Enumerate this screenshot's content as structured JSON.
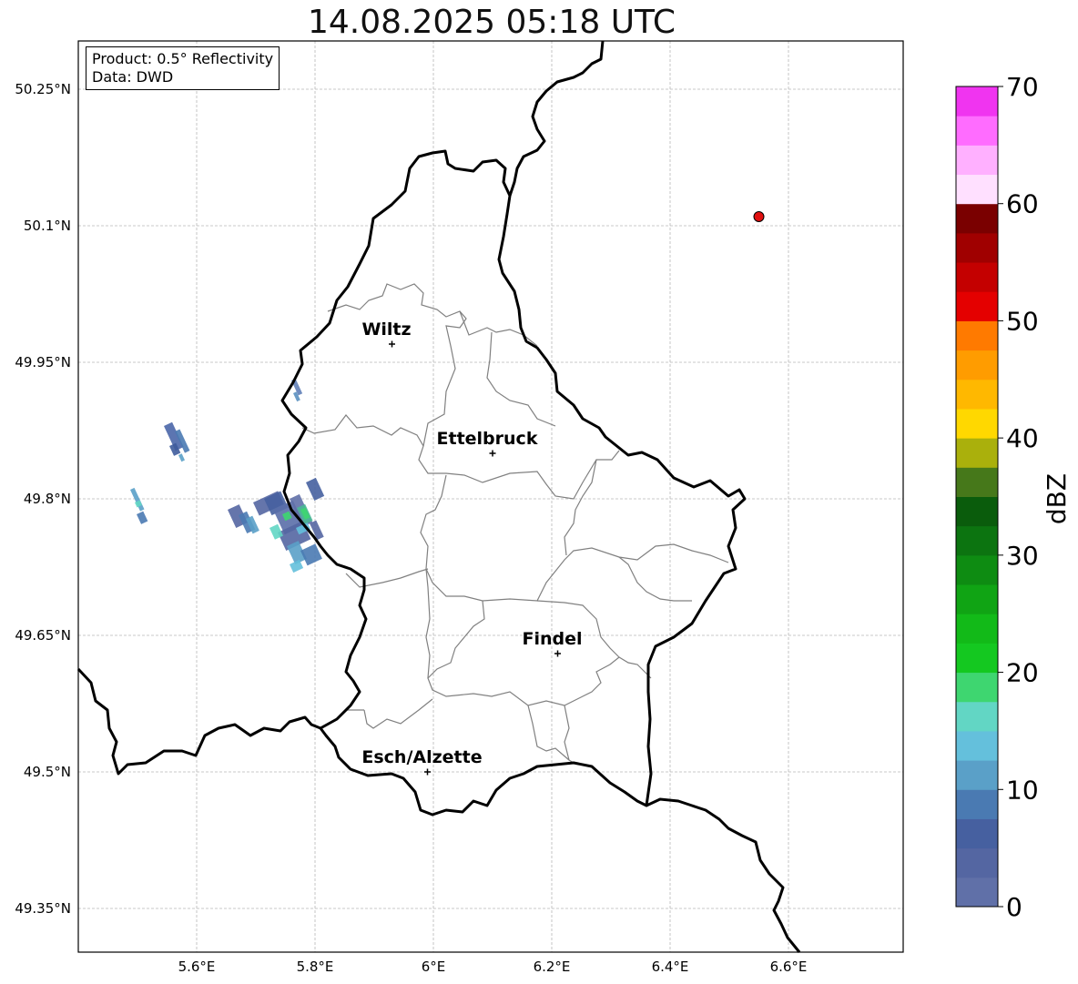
{
  "title": "14.08.2025 05:18 UTC",
  "info_box": {
    "product": "Product: 0.5° Reflectivity",
    "data": "Data: DWD"
  },
  "axes": {
    "lon_ticks": [
      "5.6°E",
      "5.8°E",
      "6°E",
      "6.2°E",
      "6.4°E",
      "6.6°E"
    ],
    "lat_ticks": [
      "50.25°N",
      "50.1°N",
      "49.95°N",
      "49.8°N",
      "49.65°N",
      "49.5°N",
      "49.35°N"
    ],
    "lon_range": [
      5.4,
      6.8
    ],
    "lat_range": [
      49.3,
      50.3
    ]
  },
  "cities": [
    {
      "name": "Wiltz",
      "lon": 5.93,
      "lat": 49.97
    },
    {
      "name": "Ettelbruck",
      "lon": 6.1,
      "lat": 49.85
    },
    {
      "name": "Findel",
      "lon": 6.21,
      "lat": 49.63
    },
    {
      "name": "Esch/Alzette",
      "lon": 5.99,
      "lat": 49.5
    }
  ],
  "radar_marker": {
    "lon": 6.55,
    "lat": 50.11,
    "color": "#e01010"
  },
  "colorbar": {
    "label": "dBZ",
    "ticks": [
      "0",
      "10",
      "20",
      "30",
      "40",
      "50",
      "60",
      "70"
    ],
    "colors": [
      "#6070a8",
      "#5466a2",
      "#4660a0",
      "#4a7ab2",
      "#5aa0c8",
      "#64c0dc",
      "#62d6c4",
      "#3ed670",
      "#14c820",
      "#12ba18",
      "#10a414",
      "#0e8c12",
      "#0c7410",
      "#0a5c0c",
      "#46781a",
      "#aab00c",
      "#ffd800",
      "#ffb800",
      "#ff9c00",
      "#ff7a00",
      "#e40000",
      "#c40000",
      "#a00000",
      "#7a0000",
      "#ffe0ff",
      "#ffb0ff",
      "#ff6cff",
      "#f034f0"
    ]
  }
}
